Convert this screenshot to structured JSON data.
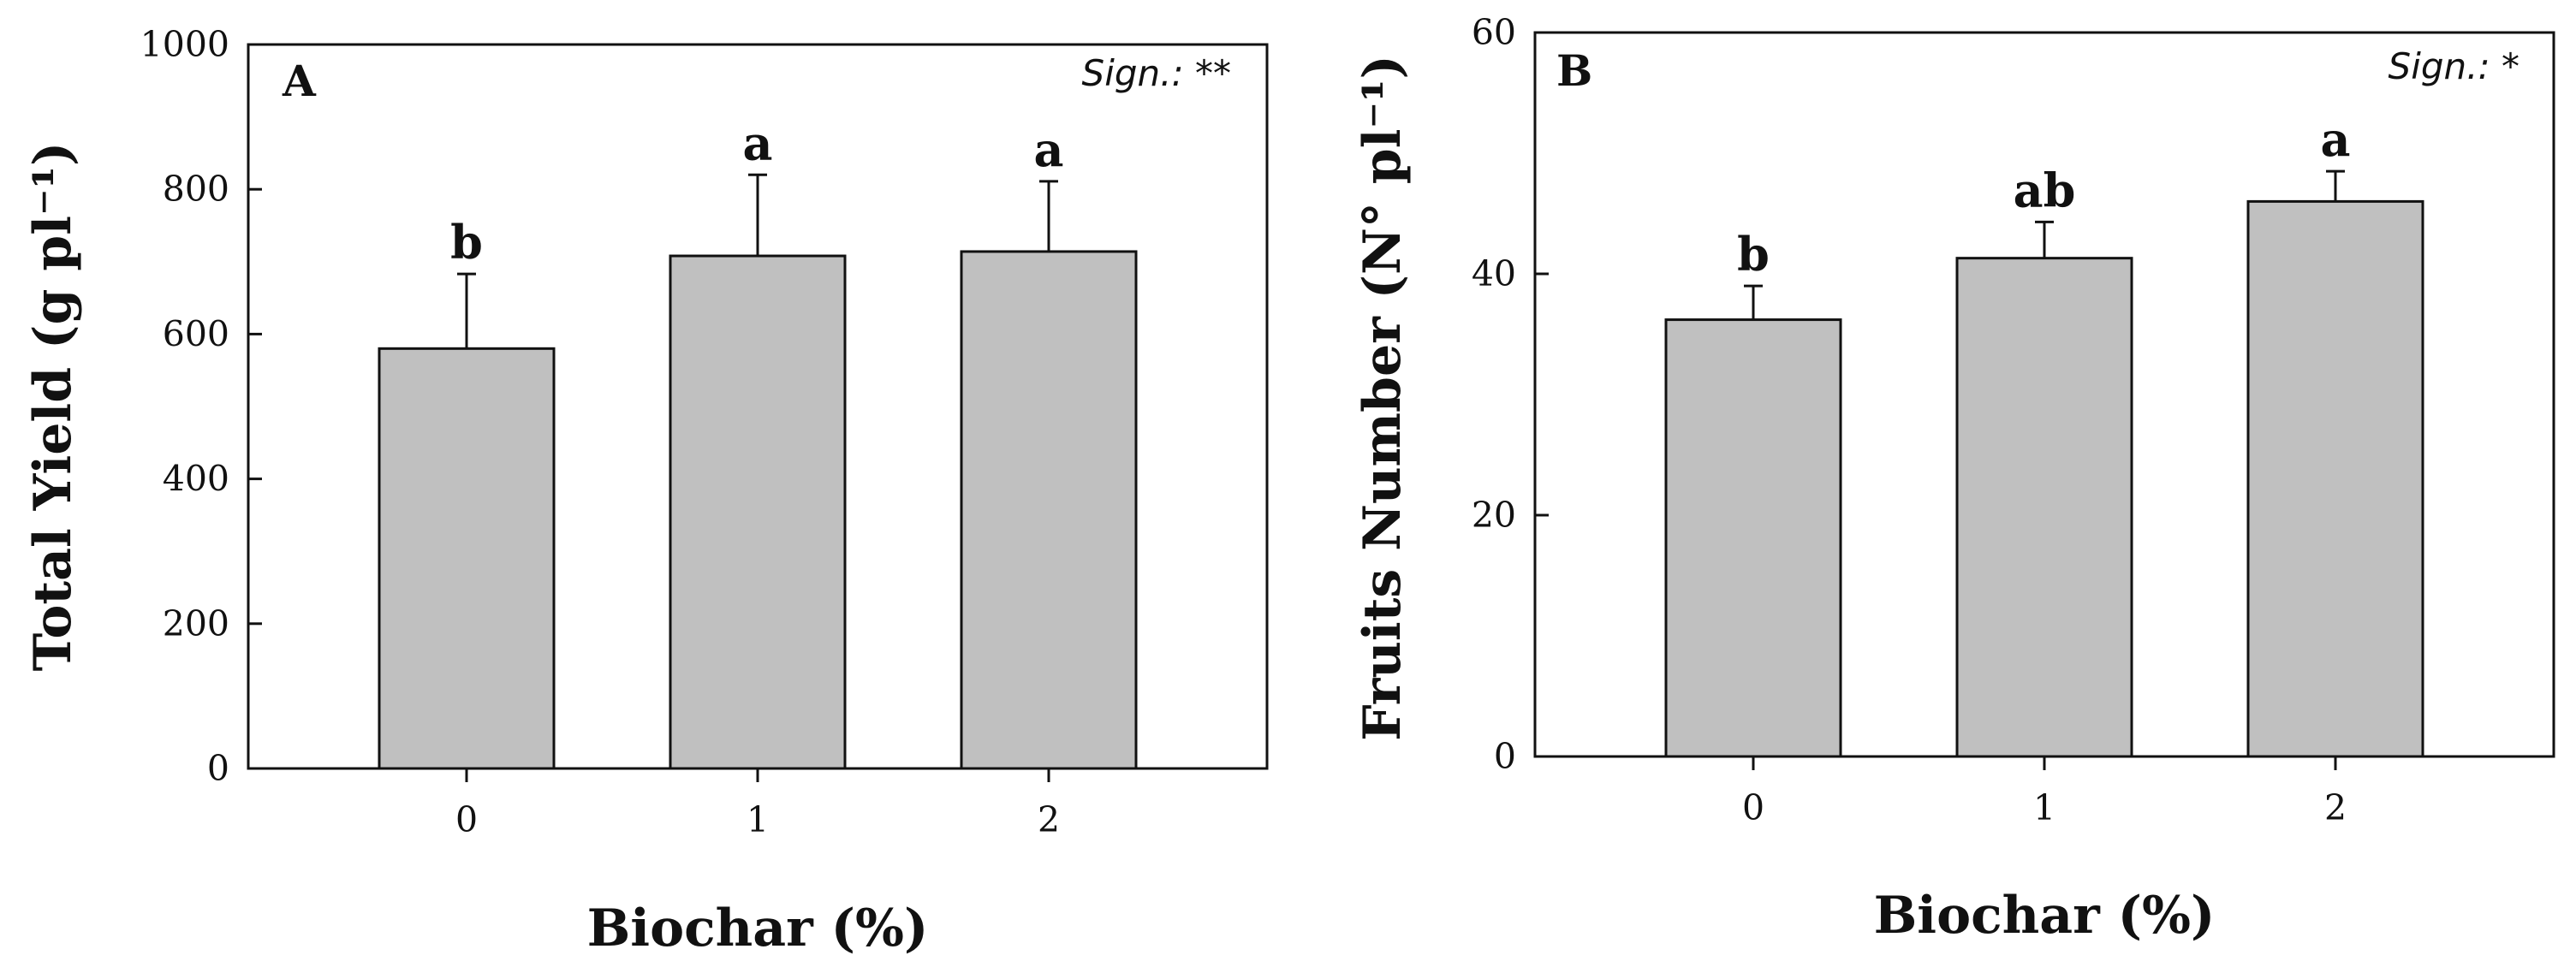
{
  "chart_data": [
    {
      "type": "bar",
      "panel_label": "A",
      "significance": "Sign.: **",
      "categories": [
        "0",
        "1",
        "2"
      ],
      "values": [
        580,
        708,
        714
      ],
      "errors": [
        103,
        112,
        97
      ],
      "letters": [
        "b",
        "a",
        "a"
      ],
      "xlabel": "Biochar (%)",
      "ylabel": "Total Yield (g pl⁻¹)",
      "ylim": [
        0,
        1000
      ],
      "yticks": [
        0,
        200,
        400,
        600,
        800,
        1000
      ],
      "grid": false,
      "bar_color": "#c0c0c0"
    },
    {
      "type": "bar",
      "panel_label": "B",
      "significance": "Sign.: *",
      "categories": [
        "0",
        "1",
        "2"
      ],
      "values": [
        36.2,
        41.3,
        46.0
      ],
      "errors": [
        2.8,
        3.0,
        2.5
      ],
      "letters": [
        "b",
        "ab",
        "a"
      ],
      "xlabel": "Biochar (%)",
      "ylabel": "Fruits Number (N° pl⁻¹)",
      "ylim": [
        0,
        60
      ],
      "yticks": [
        0,
        20,
        40,
        60
      ],
      "grid": false,
      "bar_color": "#c0c0c0"
    }
  ]
}
